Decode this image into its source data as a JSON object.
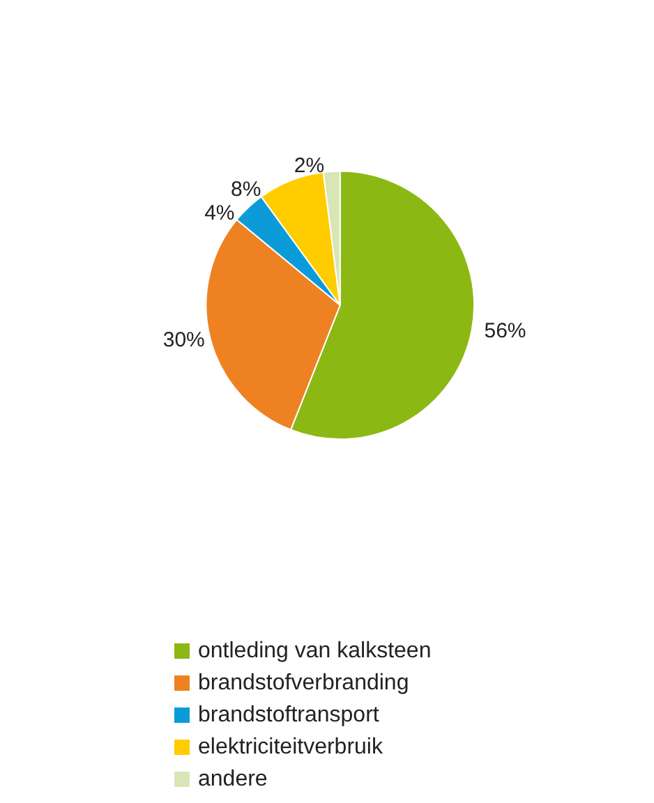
{
  "chart_data": {
    "type": "pie",
    "categories": [
      "ontleding van kalksteen",
      "brandstofverbranding",
      "brandstoftransport",
      "elektriciteitverbruik",
      "andere"
    ],
    "values": [
      56,
      30,
      4,
      8,
      2
    ],
    "value_labels": [
      "56%",
      "30%",
      "4%",
      "8%",
      "2%"
    ],
    "colors": [
      "#8cb813",
      "#ee8222",
      "#0b9bd8",
      "#ffcc00",
      "#d8e6b6"
    ],
    "legend": "bottom"
  }
}
